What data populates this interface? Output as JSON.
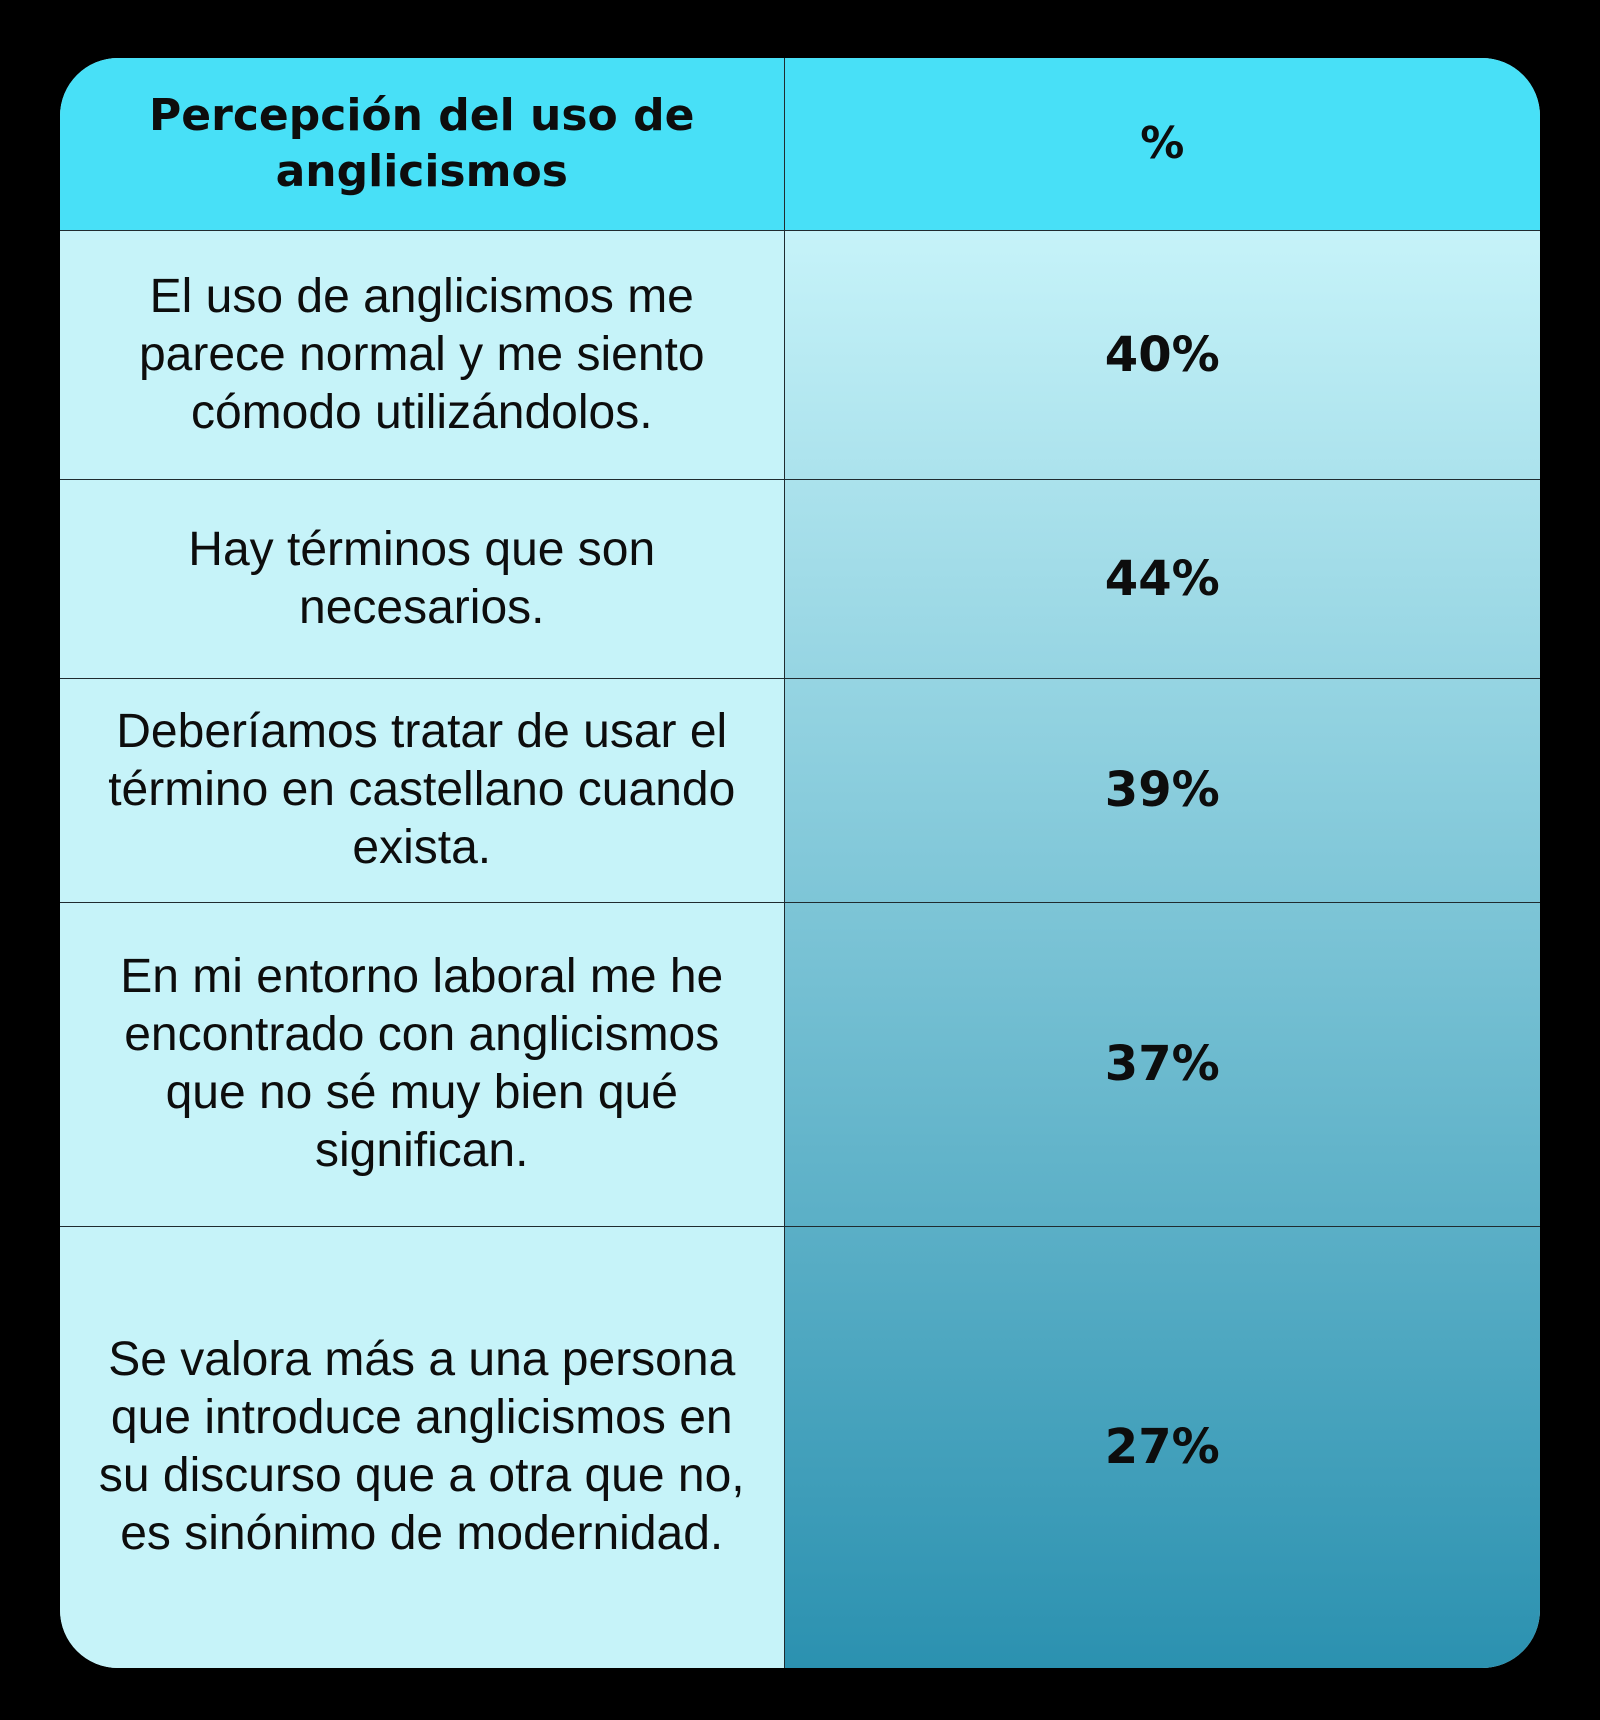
{
  "colors": {
    "background": "#000000",
    "header_fill": "#48e0f7",
    "statement_fill": "#c6f3f9",
    "value_gradient_top": "#c6f3f9",
    "value_gradient_bottom": "#2b91b0"
  },
  "chart_data": {
    "type": "table",
    "columns": [
      "Percepción del uso de anglicismos",
      "%"
    ],
    "rows": [
      {
        "statement": "El uso de anglicismos me parece normal y me siento cómodo utilizándolos.",
        "value": 40,
        "label": "40%"
      },
      {
        "statement": "Hay términos que son necesarios.",
        "value": 44,
        "label": "44%"
      },
      {
        "statement": "Deberíamos tratar de usar el término en castellano cuando exista.",
        "value": 39,
        "label": "39%"
      },
      {
        "statement": "En mi entorno laboral me he encontrado con anglicismos que no sé muy bien qué significan.",
        "value": 37,
        "label": "37%"
      },
      {
        "statement": "Se valora más a una persona que introduce anglicismos en su discurso que a otra que no, es sinónimo de modernidad.",
        "value": 27,
        "label": "27%"
      }
    ]
  }
}
